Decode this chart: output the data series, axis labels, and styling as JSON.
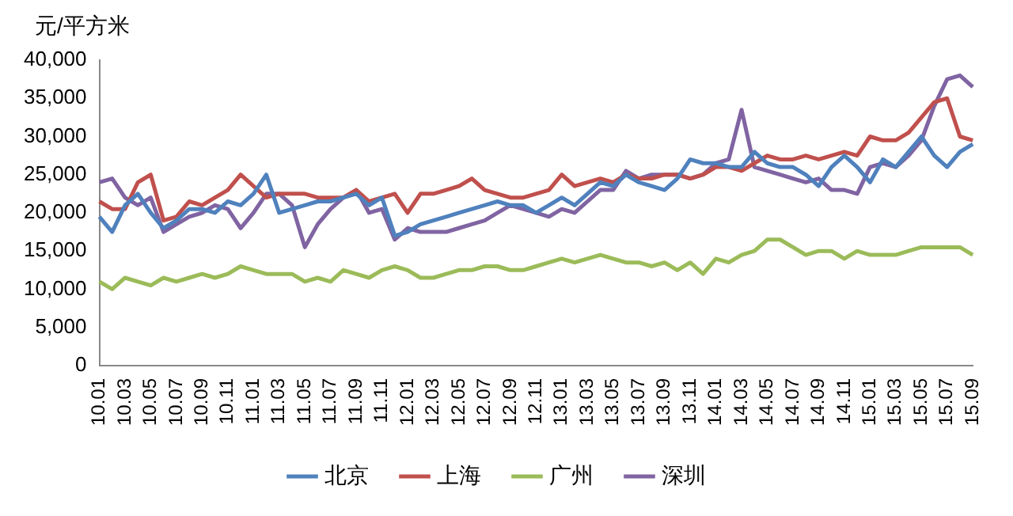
{
  "chart_data": {
    "type": "line",
    "ylabel": "元/平方米",
    "categories": [
      "10.01",
      null,
      "10.03",
      null,
      "10.05",
      null,
      "10.07",
      null,
      "10.09",
      null,
      "10.11",
      null,
      "11.01",
      null,
      "11.03",
      null,
      "11.05",
      null,
      "11.07",
      null,
      "11.09",
      null,
      "11.11",
      null,
      "12.01",
      null,
      "12.03",
      null,
      "12.05",
      null,
      "12.07",
      null,
      "12.09",
      null,
      "12.11",
      null,
      "13.01",
      null,
      "13.03",
      null,
      "13.05",
      null,
      "13.07",
      null,
      "13.09",
      null,
      "13.11",
      null,
      "14.01",
      null,
      "14.03",
      null,
      "14.05",
      null,
      "14.07",
      null,
      "14.09",
      null,
      "14.11",
      null,
      "15.01",
      null,
      "15.03",
      null,
      "15.05",
      null,
      "15.07",
      null,
      "15.09"
    ],
    "series": [
      {
        "name": "北京",
        "color": "#4f81bd",
        "values": [
          19500,
          17500,
          21000,
          22500,
          20000,
          18000,
          19000,
          20500,
          20500,
          20000,
          21500,
          21000,
          22500,
          25000,
          20000,
          20500,
          21000,
          21500,
          21500,
          22000,
          22500,
          21000,
          22000,
          17000,
          17500,
          18500,
          19000,
          19500,
          20000,
          20500,
          21000,
          21500,
          21000,
          21000,
          20000,
          21000,
          22000,
          21000,
          22500,
          24000,
          23500,
          25000,
          24000,
          23500,
          23000,
          24500,
          27000,
          26500,
          26500,
          26000,
          26000,
          28000,
          26500,
          26000,
          26000,
          25000,
          23500,
          26000,
          27500,
          26000,
          24000,
          27000,
          26000,
          28000,
          30000,
          27500,
          26000,
          28000,
          29000
        ]
      },
      {
        "name": "上海",
        "color": "#c0504d",
        "values": [
          21500,
          20500,
          20500,
          24000,
          25000,
          19000,
          19500,
          21500,
          21000,
          22000,
          23000,
          25000,
          23500,
          22000,
          22500,
          22500,
          22500,
          22000,
          22000,
          22000,
          23000,
          21500,
          22000,
          22500,
          20000,
          22500,
          22500,
          23000,
          23500,
          24500,
          23000,
          22500,
          22000,
          22000,
          22500,
          23000,
          25000,
          23500,
          24000,
          24500,
          24000,
          25000,
          24500,
          24500,
          25000,
          25000,
          24500,
          25000,
          26000,
          26000,
          25500,
          26500,
          27500,
          27000,
          27000,
          27500,
          27000,
          27500,
          28000,
          27500,
          30000,
          29500,
          29500,
          30500,
          32500,
          34500,
          35000,
          30000,
          29500
        ]
      },
      {
        "name": "广州",
        "color": "#9bbb59",
        "values": [
          11000,
          10000,
          11500,
          11000,
          10500,
          11500,
          11000,
          11500,
          12000,
          11500,
          12000,
          13000,
          12500,
          12000,
          12000,
          12000,
          11000,
          11500,
          11000,
          12500,
          12000,
          11500,
          12500,
          13000,
          12500,
          11500,
          11500,
          12000,
          12500,
          12500,
          13000,
          13000,
          12500,
          12500,
          13000,
          13500,
          14000,
          13500,
          14000,
          14500,
          14000,
          13500,
          13500,
          13000,
          13500,
          12500,
          13500,
          12000,
          14000,
          13500,
          14500,
          15000,
          16500,
          16500,
          15500,
          14500,
          15000,
          15000,
          14000,
          15000,
          14500,
          14500,
          14500,
          15000,
          15500,
          15500,
          15500,
          15500,
          14500
        ]
      },
      {
        "name": "深圳",
        "color": "#8064a2",
        "values": [
          24000,
          24500,
          22000,
          21000,
          22000,
          17500,
          18500,
          19500,
          20000,
          21000,
          20500,
          18000,
          20000,
          22500,
          22500,
          21000,
          15500,
          18500,
          20500,
          22000,
          23000,
          20000,
          20500,
          16500,
          18000,
          17500,
          17500,
          17500,
          18000,
          18500,
          19000,
          20000,
          21000,
          20500,
          20000,
          19500,
          20500,
          20000,
          21500,
          23000,
          23000,
          25500,
          24500,
          25000,
          25000,
          25000,
          24500,
          25000,
          26500,
          27000,
          33500,
          26000,
          25500,
          25000,
          24500,
          24000,
          24500,
          23000,
          23000,
          22500,
          26000,
          26500,
          26000,
          27500,
          29500,
          34000,
          37500,
          38000,
          36500
        ]
      }
    ],
    "ylim": [
      0,
      40000
    ],
    "yticks": [
      {
        "value": 0,
        "label": "0"
      },
      {
        "value": 5000,
        "label": "5,000"
      },
      {
        "value": 10000,
        "label": "10,000"
      },
      {
        "value": 15000,
        "label": "15,000"
      },
      {
        "value": 20000,
        "label": "20,000"
      },
      {
        "value": 25000,
        "label": "25,000"
      },
      {
        "value": 30000,
        "label": "30,000"
      },
      {
        "value": 35000,
        "label": "35,000"
      },
      {
        "value": 40000,
        "label": "40,000"
      }
    ],
    "grid": false,
    "legend": "bottom",
    "marker": "none",
    "line_style": "solid"
  }
}
